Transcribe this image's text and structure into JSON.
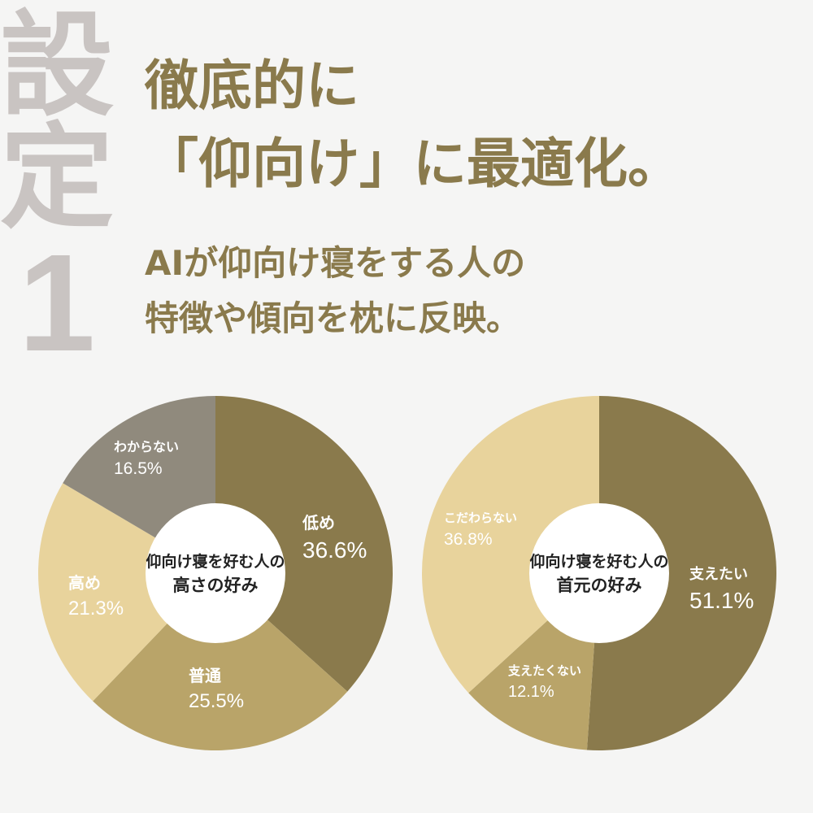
{
  "tag": {
    "line1": "設",
    "line2": "定",
    "number": "1"
  },
  "headline": {
    "line1": "徹底的に",
    "line2": "「仰向け」に最適化。"
  },
  "subheadline": {
    "line1": "AIが仰向け寝をする人の",
    "line2": "特徴や傾向を枕に反映。"
  },
  "colors": {
    "dark": "#8a7a4c",
    "mid": "#b9a469",
    "light": "#e8d39c",
    "grey": "#908a7d",
    "text": "#8a7a4c",
    "tag": "#c9c4c2"
  },
  "chart_data": [
    {
      "type": "pie",
      "title": "仰向け寝を好む人の 高さの好み",
      "center_label": [
        "仰向け寝を好む人の",
        "高さの好み"
      ],
      "slices": [
        {
          "label": "低め",
          "value": 36.6,
          "display": "36.6%",
          "color": "#8a7a4c"
        },
        {
          "label": "普通",
          "value": 25.5,
          "display": "25.5%",
          "color": "#b9a469"
        },
        {
          "label": "高め",
          "value": 21.3,
          "display": "21.3%",
          "color": "#e8d39c"
        },
        {
          "label": "わからない",
          "value": 16.5,
          "display": "16.5%",
          "color": "#908a7d"
        }
      ]
    },
    {
      "type": "pie",
      "title": "仰向け寝を好む人の 首元の好み",
      "center_label": [
        "仰向け寝を好む人の",
        "首元の好み"
      ],
      "slices": [
        {
          "label": "支えたい",
          "value": 51.1,
          "display": "51.1%",
          "color": "#8a7a4c"
        },
        {
          "label": "支えたくない",
          "value": 12.1,
          "display": "12.1%",
          "color": "#b9a469"
        },
        {
          "label": "こだわらない",
          "value": 36.8,
          "display": "36.8%",
          "color": "#e8d39c"
        }
      ]
    }
  ]
}
